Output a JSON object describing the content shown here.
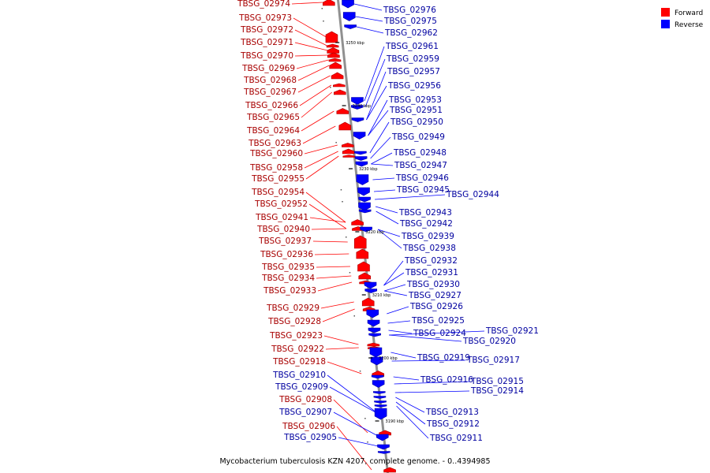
{
  "caption": "Mycobacterium tuberculosis KZN 4207, complete genome. - 0..4394985",
  "legend": [
    {
      "label": "Forward",
      "color": "#ff0000"
    },
    {
      "label": "Reverse",
      "color": "#0000ff"
    }
  ],
  "colors": {
    "forward": "#ff0000",
    "forward_dark": "#a80000",
    "reverse": "#0000ff",
    "reverse_dark": "#0000a0",
    "backbone": "#909090"
  },
  "ticks": [
    "3250 kbp",
    "3240 kbp",
    "3230 kbp",
    "3220 kbp",
    "3210 kbp",
    "3200 kbp",
    "3190 kbp"
  ],
  "forward_labels": [
    "TBSG_02974",
    "TBSG_02973",
    "TBSG_02972",
    "TBSG_02971",
    "TBSG_02970",
    "TBSG_02969",
    "TBSG_02968",
    "TBSG_02967",
    "TBSG_02966",
    "TBSG_02965",
    "TBSG_02964",
    "TBSG_02963",
    "TBSG_02960",
    "TBSG_02958",
    "TBSG_02955",
    "TBSG_02954",
    "TBSG_02952",
    "TBSG_02941",
    "TBSG_02940",
    "TBSG_02937",
    "TBSG_02936",
    "TBSG_02935",
    "TBSG_02934",
    "TBSG_02933",
    "TBSG_02929",
    "TBSG_02928",
    "TBSG_02923",
    "TBSG_02922",
    "TBSG_02918",
    "TBSG_02908",
    "TBSG_02906"
  ],
  "reverse_labels": [
    "TBSG_02976",
    "TBSG_02975",
    "TBSG_02962",
    "TBSG_02961",
    "TBSG_02959",
    "TBSG_02957",
    "TBSG_02956",
    "TBSG_02953",
    "TBSG_02951",
    "TBSG_02950",
    "TBSG_02949",
    "TBSG_02948",
    "TBSG_02947",
    "TBSG_02946",
    "TBSG_02945",
    "TBSG_02944",
    "TBSG_02943",
    "TBSG_02942",
    "TBSG_02939",
    "TBSG_02938",
    "TBSG_02932",
    "TBSG_02931",
    "TBSG_02930",
    "TBSG_02927",
    "TBSG_02926",
    "TBSG_02925",
    "TBSG_02924",
    "TBSG_02921",
    "TBSG_02920",
    "TBSG_02919",
    "TBSG_02917",
    "TBSG_02916",
    "TBSG_02915",
    "TBSG_02914",
    "TBSG_02913",
    "TBSG_02912",
    "TBSG_02911",
    "TBSG_02910",
    "TBSG_02909",
    "TBSG_02907",
    "TBSG_02905"
  ]
}
